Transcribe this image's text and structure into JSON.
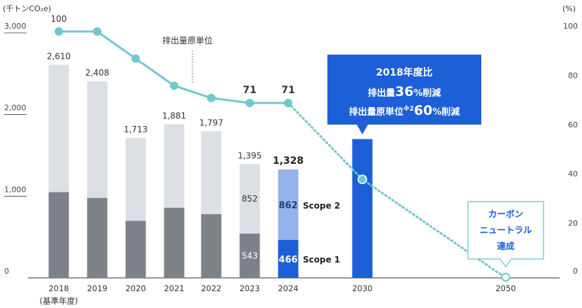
{
  "chart_data": {
    "type": "bar",
    "left_unit": "(千トンCO₂e)",
    "right_unit": "(%)",
    "left_ticks": [
      "3,000",
      "2,000",
      "1,000",
      "0"
    ],
    "right_ticks": [
      "100",
      "80",
      "60",
      "40",
      "20",
      "0"
    ],
    "ylim_left": [
      0,
      3000
    ],
    "ylim_right": [
      0,
      100
    ],
    "categories": [
      "2018",
      "2019",
      "2020",
      "2021",
      "2022",
      "2023",
      "2024",
      "2030",
      "2050"
    ],
    "base_year_note": "(基準年度)",
    "totals": [
      2610,
      2408,
      1713,
      1881,
      1797,
      1395,
      1328,
      null,
      null
    ],
    "total_labels": [
      "2,610",
      "2,408",
      "1,713",
      "1,881",
      "1,797",
      "1,395",
      "1,328",
      "",
      ""
    ],
    "scope1": [
      1050,
      980,
      700,
      860,
      780,
      543,
      466,
      1700,
      0
    ],
    "scope2": [
      1560,
      1428,
      1013,
      1021,
      1017,
      852,
      862,
      0,
      0
    ],
    "scope_labels": {
      "scope1_2023": "543",
      "scope2_2023": "852",
      "scope1_2024": "466",
      "scope2_2024": "862",
      "scope1": "Scope 1",
      "scope2": "Scope 2"
    },
    "intensity_series": {
      "name": "排出量原単位",
      "values": [
        100,
        100,
        89,
        78,
        73,
        71,
        71,
        40,
        0
      ],
      "labels": [
        "100",
        "",
        "",
        "",
        "",
        "71",
        "71",
        "",
        ""
      ]
    },
    "callout_2030": {
      "line1": "2018年度比",
      "line2a": "排出量",
      "line2b": "36",
      "line2c": "%削減",
      "line3a": "排出量原単位",
      "line3b": "※2",
      "line3c": "60",
      "line3d": "%削減"
    },
    "callout_2050": {
      "line1": "カーボン",
      "line2": "ニュートラル",
      "line3": "達成"
    },
    "colors": {
      "scope2": "#dcdfe3",
      "scope1": "#7d8289",
      "scope2_2024": "#94b3ea",
      "scope1_2024": "#1c5fd6",
      "bar_2030": "#1c5fd6",
      "line": "#70c7ce",
      "callout_2030": "#1c5fd6",
      "callout_2050_border": "#5fc3cb"
    }
  }
}
